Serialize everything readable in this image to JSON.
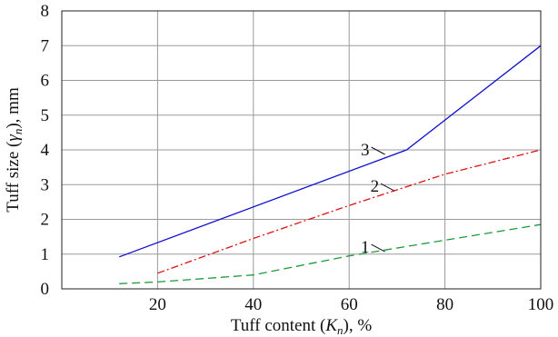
{
  "chart_data": {
    "type": "line",
    "xlabel_parts": [
      "Tuff content (",
      "K",
      "n",
      "), %"
    ],
    "ylabel_parts": [
      "Tuff size  (",
      "γ",
      "n",
      "), mm"
    ],
    "xlim": [
      0,
      100
    ],
    "ylim": [
      0,
      8
    ],
    "x_ticks": [
      20,
      40,
      60,
      80,
      100
    ],
    "y_ticks": [
      0,
      1,
      2,
      3,
      4,
      5,
      6,
      7,
      8
    ],
    "grid": true,
    "series": [
      {
        "name": "1",
        "color": "#1a9a3a",
        "dash": "dashed",
        "x": [
          12,
          20,
          40,
          60,
          80,
          100
        ],
        "y": [
          0.15,
          0.2,
          0.4,
          0.95,
          1.4,
          1.85
        ]
      },
      {
        "name": "2",
        "color": "#e01010",
        "dash": "dash-dot",
        "x": [
          20,
          40,
          60,
          80,
          100
        ],
        "y": [
          0.45,
          1.45,
          2.4,
          3.3,
          4.0
        ]
      },
      {
        "name": "3",
        "color": "#1010d0",
        "dash": "solid",
        "x": [
          12,
          72,
          100
        ],
        "y": [
          0.92,
          4.0,
          7.0
        ]
      }
    ],
    "curve_labels": [
      {
        "text": "1",
        "x": 65,
        "y": 1.2
      },
      {
        "text": "2",
        "x": 67,
        "y": 2.95
      },
      {
        "text": "3",
        "x": 65,
        "y": 4.0
      }
    ]
  }
}
